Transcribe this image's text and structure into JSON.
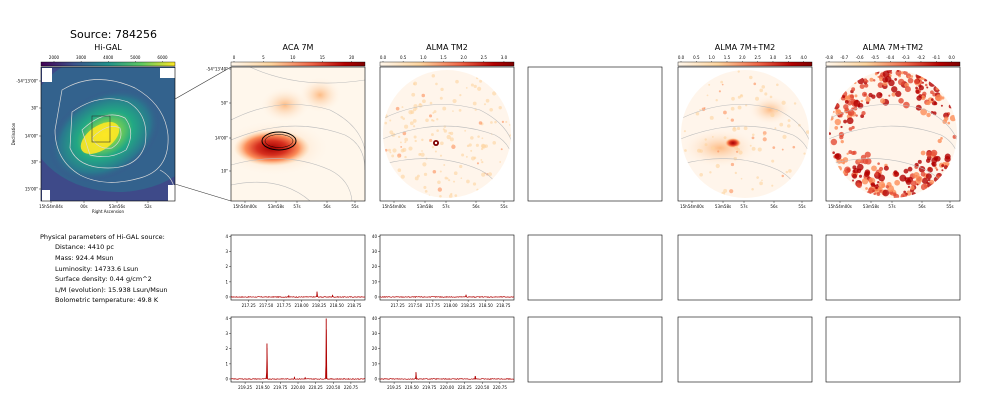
{
  "source_title": "Source: 784256",
  "panels": {
    "higal": {
      "title": "Hi-GAL",
      "colorbar_ticks": [
        "2000",
        "3000",
        "4000",
        "5000",
        "6000"
      ],
      "y_ticks": [
        "-54°13'00\"",
        "30\"",
        "14'00\"",
        "30\"",
        "15'00\""
      ],
      "x_ticks": [
        "15h54m04s",
        "00s",
        "53m56s",
        "52s"
      ],
      "xlabel": "Right Ascension",
      "ylabel": "Declination"
    },
    "aca": {
      "title": "ACA 7M",
      "colorbar_ticks": [
        "0",
        "5",
        "10",
        "15",
        "20"
      ],
      "y_ticks": [
        "-54°13'40\"",
        "50\"",
        "14'00\"",
        "10\""
      ],
      "x_ticks": [
        "15h54m00s",
        "53m58s",
        "57s",
        "56s",
        "55s"
      ]
    },
    "alma_tm2": {
      "title": "ALMA TM2",
      "colorbar_ticks": [
        "0.0",
        "0.5",
        "1.0",
        "1.5",
        "2.0",
        "2.5",
        "3.0"
      ],
      "x_ticks": [
        "15h54m00s",
        "53m58s",
        "57s",
        "56s",
        "55s"
      ]
    },
    "combo1": {
      "title": "ALMA 7M+TM2",
      "colorbar_ticks": [
        "0.0",
        "0.5",
        "1.0",
        "1.5",
        "2.0",
        "2.5",
        "3.0",
        "3.5",
        "4.0"
      ],
      "x_ticks": [
        "15h54m00s",
        "53m58s",
        "57s",
        "56s",
        "55s"
      ]
    },
    "combo2": {
      "title": "ALMA 7M+TM2",
      "colorbar_ticks": [
        "-0.8",
        "-0.7",
        "-0.6",
        "-0.5",
        "-0.4",
        "-0.3",
        "-0.2",
        "-0.1",
        "0.0"
      ],
      "x_ticks": [
        "15h54m00s",
        "53m58s",
        "57s",
        "56s",
        "55s"
      ]
    }
  },
  "params": {
    "header": "Physical parameters of Hi-GAL source:",
    "lines": [
      "Distance: 4410 pc",
      "Mass: 924.4 Msun",
      "Luminosity: 14733.6 Lsun",
      "Surface density: 0.44 g/cm^2",
      "L/M (evolution): 15.938 Lsun/Msun",
      "Bolometric temperature: 49.8 K"
    ]
  },
  "chart_data": [
    {
      "type": "line",
      "panel": "aca_spectrum_row1",
      "x_ticks": [
        "217.25",
        "217.50",
        "217.75",
        "218.00",
        "218.25",
        "218.50",
        "218.75"
      ],
      "y_ticks": [
        "0",
        "1",
        "2",
        "3",
        "4"
      ],
      "xlim": [
        217.0,
        218.9
      ],
      "ylim": [
        -0.2,
        4.1
      ],
      "lines": [
        {
          "x": 218.22,
          "peak": 0.35
        },
        {
          "x": 217.82,
          "peak": 0.1
        },
        {
          "x": 218.44,
          "peak": 0.12
        }
      ],
      "color": "#b00000"
    },
    {
      "type": "line",
      "panel": "tm2_spectrum_row1",
      "x_ticks": [
        "217.25",
        "217.50",
        "217.75",
        "218.00",
        "218.25",
        "218.50",
        "218.75"
      ],
      "y_ticks": [
        "0",
        "10",
        "20",
        "30",
        "40"
      ],
      "xlim": [
        217.0,
        218.9
      ],
      "ylim": [
        -2,
        41
      ],
      "lines": [
        {
          "x": 218.22,
          "peak": 1.5
        }
      ],
      "color": "#b00000"
    },
    {
      "type": "line",
      "panel": "aca_spectrum_row2",
      "x_ticks": [
        "219.25",
        "219.50",
        "219.75",
        "220.00",
        "220.25",
        "220.50",
        "220.75"
      ],
      "y_ticks": [
        "0",
        "1",
        "2",
        "3",
        "4"
      ],
      "xlim": [
        219.05,
        220.95
      ],
      "ylim": [
        -0.2,
        4.1
      ],
      "lines": [
        {
          "x": 219.56,
          "peak": 2.35
        },
        {
          "x": 220.4,
          "peak": 4.0
        },
        {
          "x": 219.95,
          "peak": 0.12
        },
        {
          "x": 220.1,
          "peak": 0.1
        }
      ],
      "color": "#b00000"
    },
    {
      "type": "line",
      "panel": "tm2_spectrum_row2",
      "x_ticks": [
        "219.25",
        "219.50",
        "219.75",
        "220.00",
        "220.25",
        "220.50",
        "220.75"
      ],
      "y_ticks": [
        "0",
        "10",
        "20",
        "30",
        "40"
      ],
      "xlim": [
        219.05,
        220.95
      ],
      "ylim": [
        -2,
        41
      ],
      "lines": [
        {
          "x": 219.56,
          "peak": 4.5
        },
        {
          "x": 220.4,
          "peak": 2.0
        }
      ],
      "color": "#b00000"
    }
  ]
}
